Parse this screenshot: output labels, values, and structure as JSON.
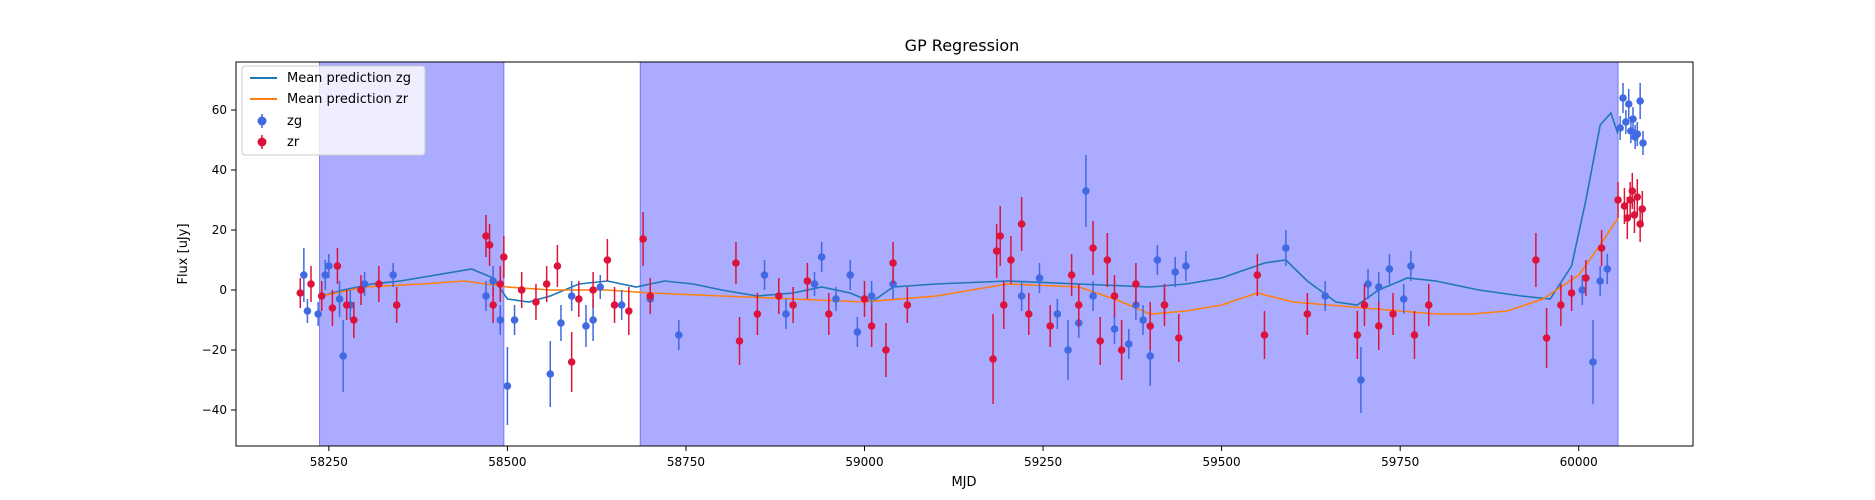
{
  "chart_data": {
    "type": "scatter",
    "title": "GP Regression",
    "xlabel": "MJD",
    "ylabel": "Flux [uJy]",
    "xlim": [
      58120,
      60160
    ],
    "ylim": [
      -52,
      76
    ],
    "xticks": [
      58250,
      58500,
      58750,
      59000,
      59250,
      59500,
      59750,
      60000
    ],
    "yticks": [
      -40,
      -20,
      0,
      20,
      40,
      60
    ],
    "grid": false,
    "legend_placement": "upper-left",
    "legend": [
      "Mean prediction zg",
      "Mean prediction zr",
      "zg",
      "zr"
    ],
    "shaded_regions": [
      {
        "x0": 58237,
        "x1": 58495,
        "color": "#a6a6ff"
      },
      {
        "x0": 58686,
        "x1": 60055,
        "color": "#a6a6ff"
      }
    ],
    "lines": [
      {
        "name": "Mean prediction zg",
        "color": "#1f77b4",
        "points": [
          [
            58240,
            -2
          ],
          [
            58270,
            0
          ],
          [
            58310,
            2
          ],
          [
            58350,
            3
          ],
          [
            58400,
            5
          ],
          [
            58450,
            7
          ],
          [
            58480,
            4
          ],
          [
            58500,
            -3
          ],
          [
            58530,
            -4
          ],
          [
            58560,
            -2
          ],
          [
            58600,
            2
          ],
          [
            58640,
            3
          ],
          [
            58680,
            1
          ],
          [
            58720,
            3
          ],
          [
            58760,
            2
          ],
          [
            58800,
            0
          ],
          [
            58850,
            -2
          ],
          [
            58900,
            -1
          ],
          [
            58940,
            1
          ],
          [
            58980,
            -1
          ],
          [
            59010,
            -4
          ],
          [
            59040,
            1
          ],
          [
            59100,
            2
          ],
          [
            59200,
            3
          ],
          [
            59300,
            2
          ],
          [
            59400,
            1
          ],
          [
            59450,
            2
          ],
          [
            59500,
            4
          ],
          [
            59560,
            9
          ],
          [
            59590,
            10
          ],
          [
            59620,
            3
          ],
          [
            59660,
            -4
          ],
          [
            59690,
            -5
          ],
          [
            59720,
            0
          ],
          [
            59760,
            4
          ],
          [
            59800,
            3
          ],
          [
            59860,
            0
          ],
          [
            59920,
            -2
          ],
          [
            59960,
            -3
          ],
          [
            59990,
            8
          ],
          [
            60010,
            30
          ],
          [
            60030,
            55
          ],
          [
            60045,
            59
          ],
          [
            60055,
            52
          ]
        ]
      },
      {
        "name": "Mean prediction zr",
        "color": "#ff7f0e",
        "points": [
          [
            58240,
            -2
          ],
          [
            58300,
            1
          ],
          [
            58380,
            2
          ],
          [
            58440,
            3
          ],
          [
            58500,
            1
          ],
          [
            58560,
            0
          ],
          [
            58640,
            0
          ],
          [
            58700,
            -1
          ],
          [
            58800,
            -2
          ],
          [
            58900,
            -3
          ],
          [
            59000,
            -4
          ],
          [
            59100,
            -2
          ],
          [
            59200,
            2
          ],
          [
            59300,
            1
          ],
          [
            59350,
            -3
          ],
          [
            59400,
            -8
          ],
          [
            59450,
            -7
          ],
          [
            59500,
            -5
          ],
          [
            59550,
            -1
          ],
          [
            59600,
            -4
          ],
          [
            59650,
            -5
          ],
          [
            59700,
            -6
          ],
          [
            59750,
            -7
          ],
          [
            59800,
            -8
          ],
          [
            59850,
            -8
          ],
          [
            59900,
            -7
          ],
          [
            59950,
            -3
          ],
          [
            60000,
            5
          ],
          [
            60030,
            15
          ],
          [
            60055,
            24
          ]
        ]
      }
    ],
    "series": [
      {
        "name": "zg",
        "color": "#4169e1",
        "points": [
          [
            58215,
            5,
            9
          ],
          [
            58220,
            -7,
            4
          ],
          [
            58235,
            -8,
            4
          ],
          [
            58245,
            5,
            5
          ],
          [
            58250,
            8,
            4
          ],
          [
            58265,
            -3,
            6
          ],
          [
            58270,
            -22,
            12
          ],
          [
            58280,
            -5,
            5
          ],
          [
            58300,
            2,
            4
          ],
          [
            58340,
            5,
            4
          ],
          [
            58470,
            -2,
            5
          ],
          [
            58480,
            3,
            5
          ],
          [
            58490,
            -10,
            5
          ],
          [
            58500,
            -32,
            13
          ],
          [
            58510,
            -10,
            5
          ],
          [
            58560,
            -28,
            11
          ],
          [
            58575,
            -11,
            6
          ],
          [
            58590,
            -2,
            5
          ],
          [
            58610,
            -12,
            7
          ],
          [
            58620,
            -10,
            7
          ],
          [
            58630,
            1,
            4
          ],
          [
            58660,
            -5,
            5
          ],
          [
            58700,
            -3,
            5
          ],
          [
            58740,
            -15,
            5
          ],
          [
            58860,
            5,
            5
          ],
          [
            58890,
            -8,
            5
          ],
          [
            58930,
            2,
            4
          ],
          [
            58940,
            11,
            5
          ],
          [
            58960,
            -3,
            4
          ],
          [
            58980,
            5,
            5
          ],
          [
            58990,
            -14,
            5
          ],
          [
            59010,
            -2,
            5
          ],
          [
            59040,
            2,
            5
          ],
          [
            59220,
            -2,
            5
          ],
          [
            59245,
            4,
            5
          ],
          [
            59270,
            -8,
            5
          ],
          [
            59285,
            -20,
            10
          ],
          [
            59300,
            -11,
            5
          ],
          [
            59310,
            33,
            12
          ],
          [
            59320,
            -2,
            5
          ],
          [
            59350,
            -13,
            5
          ],
          [
            59370,
            -18,
            5
          ],
          [
            59380,
            -5,
            5
          ],
          [
            59390,
            -10,
            5
          ],
          [
            59400,
            -22,
            10
          ],
          [
            59410,
            10,
            5
          ],
          [
            59420,
            -5,
            5
          ],
          [
            59435,
            6,
            5
          ],
          [
            59450,
            8,
            5
          ],
          [
            59590,
            14,
            6
          ],
          [
            59645,
            -2,
            5
          ],
          [
            59695,
            -30,
            11
          ],
          [
            59705,
            2,
            5
          ],
          [
            59720,
            1,
            5
          ],
          [
            59735,
            7,
            5
          ],
          [
            59755,
            -3,
            5
          ],
          [
            59765,
            8,
            5
          ],
          [
            60005,
            0,
            5
          ],
          [
            60020,
            -24,
            14
          ],
          [
            60030,
            3,
            5
          ],
          [
            60040,
            7,
            5
          ],
          [
            60058,
            54,
            4
          ],
          [
            60062,
            64,
            5
          ],
          [
            60066,
            56,
            4
          ],
          [
            60070,
            62,
            5
          ],
          [
            60073,
            53,
            4
          ],
          [
            60076,
            57,
            4
          ],
          [
            60079,
            51,
            4
          ],
          [
            60082,
            52,
            4
          ],
          [
            60086,
            63,
            6
          ],
          [
            60090,
            49,
            4
          ]
        ]
      },
      {
        "name": "zr",
        "color": "#dc143c",
        "points": [
          [
            58210,
            -1,
            5
          ],
          [
            58225,
            2,
            6
          ],
          [
            58240,
            -2,
            5
          ],
          [
            58255,
            -6,
            6
          ],
          [
            58262,
            8,
            6
          ],
          [
            58275,
            -5,
            5
          ],
          [
            58285,
            -10,
            6
          ],
          [
            58295,
            0,
            5
          ],
          [
            58320,
            2,
            6
          ],
          [
            58345,
            -5,
            6
          ],
          [
            58470,
            18,
            7
          ],
          [
            58475,
            15,
            7
          ],
          [
            58480,
            -5,
            6
          ],
          [
            58490,
            2,
            6
          ],
          [
            58495,
            11,
            7
          ],
          [
            58520,
            0,
            6
          ],
          [
            58540,
            -4,
            6
          ],
          [
            58555,
            2,
            6
          ],
          [
            58570,
            8,
            7
          ],
          [
            58590,
            -24,
            10
          ],
          [
            58600,
            -3,
            6
          ],
          [
            58620,
            0,
            6
          ],
          [
            58640,
            10,
            7
          ],
          [
            58650,
            -5,
            6
          ],
          [
            58670,
            -7,
            8
          ],
          [
            58690,
            17,
            9
          ],
          [
            58700,
            -2,
            6
          ],
          [
            58820,
            9,
            7
          ],
          [
            58825,
            -17,
            8
          ],
          [
            58850,
            -8,
            7
          ],
          [
            58880,
            -2,
            6
          ],
          [
            58900,
            -5,
            6
          ],
          [
            58920,
            3,
            6
          ],
          [
            58950,
            -8,
            7
          ],
          [
            59000,
            -3,
            6
          ],
          [
            59010,
            -12,
            7
          ],
          [
            59030,
            -20,
            9
          ],
          [
            59040,
            9,
            7
          ],
          [
            59060,
            -5,
            6
          ],
          [
            59180,
            -23,
            15
          ],
          [
            59185,
            13,
            9
          ],
          [
            59190,
            18,
            10
          ],
          [
            59195,
            -5,
            8
          ],
          [
            59205,
            10,
            8
          ],
          [
            59220,
            22,
            9
          ],
          [
            59230,
            -8,
            7
          ],
          [
            59260,
            -12,
            7
          ],
          [
            59290,
            5,
            7
          ],
          [
            59300,
            -5,
            7
          ],
          [
            59320,
            14,
            9
          ],
          [
            59330,
            -17,
            8
          ],
          [
            59340,
            10,
            9
          ],
          [
            59350,
            -2,
            7
          ],
          [
            59360,
            -20,
            10
          ],
          [
            59380,
            2,
            7
          ],
          [
            59400,
            -12,
            8
          ],
          [
            59420,
            -5,
            7
          ],
          [
            59440,
            -16,
            8
          ],
          [
            59550,
            5,
            7
          ],
          [
            59560,
            -15,
            8
          ],
          [
            59620,
            -8,
            7
          ],
          [
            59690,
            -15,
            8
          ],
          [
            59700,
            -5,
            7
          ],
          [
            59720,
            -12,
            8
          ],
          [
            59740,
            -8,
            7
          ],
          [
            59770,
            -15,
            8
          ],
          [
            59790,
            -5,
            7
          ],
          [
            59940,
            10,
            9
          ],
          [
            59955,
            -16,
            10
          ],
          [
            59975,
            -5,
            7
          ],
          [
            59990,
            -1,
            6
          ],
          [
            60010,
            4,
            6
          ],
          [
            60032,
            14,
            6
          ],
          [
            60055,
            30,
            6
          ],
          [
            60064,
            28,
            6
          ],
          [
            60068,
            24,
            7
          ],
          [
            60072,
            30,
            6
          ],
          [
            60075,
            33,
            6
          ],
          [
            60078,
            25,
            6
          ],
          [
            60082,
            31,
            6
          ],
          [
            60086,
            22,
            6
          ],
          [
            60089,
            27,
            6
          ]
        ]
      }
    ]
  }
}
